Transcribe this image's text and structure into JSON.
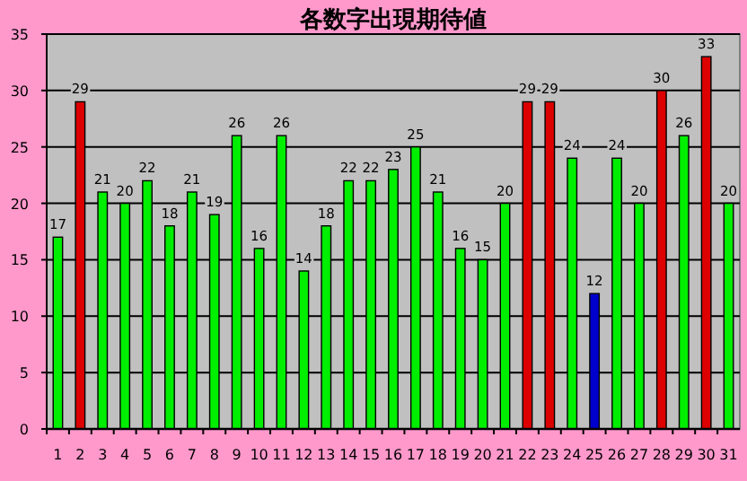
{
  "chart_data": {
    "type": "bar",
    "title": "各数字出現期待値",
    "categories": [
      "1",
      "2",
      "3",
      "4",
      "5",
      "6",
      "7",
      "8",
      "9",
      "10",
      "11",
      "12",
      "13",
      "14",
      "15",
      "16",
      "17",
      "18",
      "19",
      "20",
      "21",
      "22",
      "23",
      "24",
      "25",
      "26",
      "27",
      "28",
      "29",
      "30",
      "31"
    ],
    "values": [
      17,
      29,
      21,
      20,
      22,
      18,
      21,
      19,
      26,
      16,
      26,
      14,
      18,
      22,
      22,
      23,
      25,
      21,
      16,
      15,
      20,
      29,
      29,
      24,
      12,
      24,
      20,
      30,
      26,
      33,
      20
    ],
    "colors": [
      "#00ee00",
      "#dd0000",
      "#00ee00",
      "#00ee00",
      "#00ee00",
      "#00ee00",
      "#00ee00",
      "#00ee00",
      "#00ee00",
      "#00ee00",
      "#00ee00",
      "#00ee00",
      "#00ee00",
      "#00ee00",
      "#00ee00",
      "#00ee00",
      "#00ee00",
      "#00ee00",
      "#00ee00",
      "#00ee00",
      "#00ee00",
      "#dd0000",
      "#dd0000",
      "#00ee00",
      "#0000cc",
      "#00ee00",
      "#00ee00",
      "#dd0000",
      "#00ee00",
      "#dd0000",
      "#00ee00"
    ],
    "ylim": [
      0,
      35
    ],
    "yticks": [
      0,
      5,
      10,
      15,
      20,
      25,
      30,
      35
    ],
    "grid": "y",
    "data_labels": true
  }
}
